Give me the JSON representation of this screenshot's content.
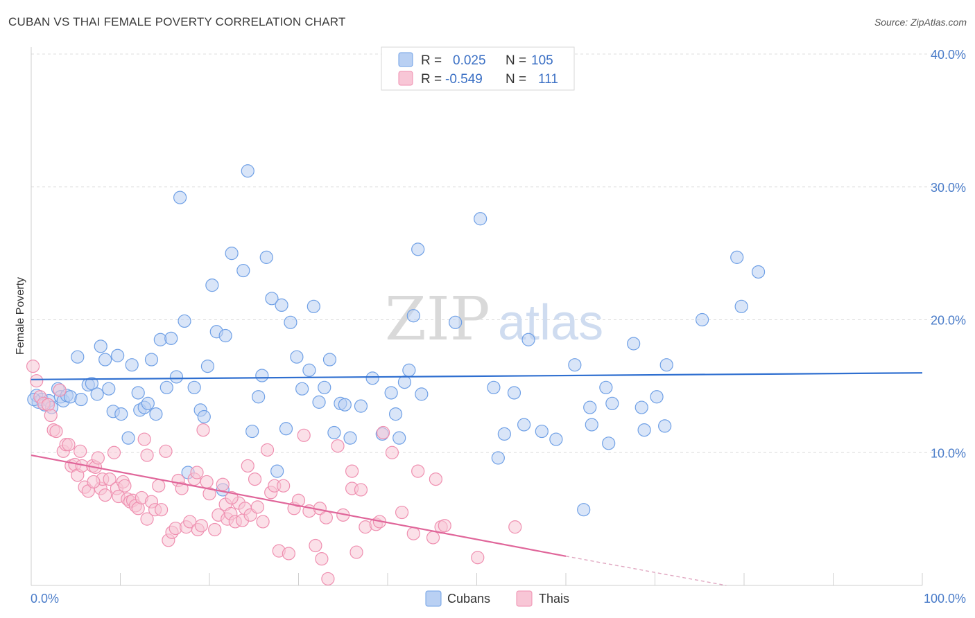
{
  "title": "CUBAN VS THAI FEMALE POVERTY CORRELATION CHART",
  "source": "Source: ZipAtlas.com",
  "watermark": {
    "zip": "ZIP",
    "atlas": "atlas"
  },
  "legend": {
    "rows": [
      {
        "r_label": "R =",
        "r_value": "0.025",
        "n_label": "N =",
        "n_value": "105",
        "color": "#6fa0e6",
        "fill": "#b9d0f3"
      },
      {
        "r_label": "R =",
        "r_value": "-0.549",
        "n_label": "N =",
        "n_value": "111",
        "color": "#ef8fb0",
        "fill": "#f8c6d6"
      }
    ]
  },
  "chart_data": {
    "type": "scatter",
    "xlabel": "",
    "ylabel": "Female Poverty",
    "xlim": [
      0,
      100
    ],
    "ylim": [
      0,
      40
    ],
    "x_tick_labels": [
      "0.0%",
      "100.0%"
    ],
    "y_ticks": [
      10,
      20,
      30,
      40
    ],
    "y_tick_labels": [
      "10.0%",
      "20.0%",
      "30.0%",
      "40.0%"
    ],
    "grid": true,
    "legend_position": "bottom-center",
    "series": [
      {
        "name": "Cubans",
        "color": "#6fa0e6",
        "fill": "#b9d0f3",
        "trend": {
          "x": [
            0,
            100
          ],
          "y": [
            15.5,
            16.0
          ]
        },
        "points": [
          [
            0.6,
            14.3
          ],
          [
            0.8,
            13.8
          ],
          [
            1.2,
            14.0
          ],
          [
            1.5,
            13.6
          ],
          [
            2.0,
            13.9
          ],
          [
            2.3,
            13.4
          ],
          [
            3.0,
            14.8
          ],
          [
            3.3,
            14.2
          ],
          [
            3.6,
            13.9
          ],
          [
            4.0,
            14.3
          ],
          [
            4.4,
            14.2
          ],
          [
            5.2,
            17.2
          ],
          [
            5.6,
            14.0
          ],
          [
            6.4,
            15.1
          ],
          [
            6.8,
            15.2
          ],
          [
            7.4,
            14.4
          ],
          [
            7.8,
            18.0
          ],
          [
            8.3,
            17.0
          ],
          [
            8.7,
            14.8
          ],
          [
            9.2,
            13.1
          ],
          [
            9.7,
            17.3
          ],
          [
            10.1,
            12.9
          ],
          [
            10.9,
            11.1
          ],
          [
            11.3,
            16.6
          ],
          [
            12.0,
            14.5
          ],
          [
            12.2,
            13.2
          ],
          [
            12.7,
            13.4
          ],
          [
            13.1,
            13.7
          ],
          [
            13.5,
            17.0
          ],
          [
            14.0,
            12.9
          ],
          [
            14.5,
            18.5
          ],
          [
            15.2,
            14.9
          ],
          [
            15.7,
            18.6
          ],
          [
            16.3,
            15.7
          ],
          [
            16.7,
            29.2
          ],
          [
            17.2,
            19.9
          ],
          [
            17.6,
            8.5
          ],
          [
            18.3,
            14.9
          ],
          [
            19.0,
            13.2
          ],
          [
            19.4,
            12.7
          ],
          [
            19.8,
            16.5
          ],
          [
            20.3,
            22.6
          ],
          [
            20.8,
            19.1
          ],
          [
            21.5,
            7.2
          ],
          [
            21.8,
            18.8
          ],
          [
            22.5,
            25.0
          ],
          [
            23.8,
            23.7
          ],
          [
            24.3,
            31.2
          ],
          [
            24.8,
            11.6
          ],
          [
            25.5,
            14.2
          ],
          [
            25.9,
            15.8
          ],
          [
            26.4,
            24.7
          ],
          [
            27.0,
            21.6
          ],
          [
            27.6,
            8.6
          ],
          [
            28.1,
            21.1
          ],
          [
            28.6,
            11.8
          ],
          [
            29.1,
            19.8
          ],
          [
            29.8,
            17.2
          ],
          [
            30.4,
            14.8
          ],
          [
            31.2,
            16.2
          ],
          [
            31.7,
            21.0
          ],
          [
            32.3,
            13.8
          ],
          [
            32.9,
            14.9
          ],
          [
            33.5,
            17.0
          ],
          [
            34.0,
            11.5
          ],
          [
            34.7,
            13.7
          ],
          [
            35.2,
            13.6
          ],
          [
            35.8,
            11.1
          ],
          [
            37.0,
            13.5
          ],
          [
            38.3,
            15.6
          ],
          [
            39.4,
            11.4
          ],
          [
            40.4,
            14.5
          ],
          [
            40.9,
            12.9
          ],
          [
            41.3,
            11.1
          ],
          [
            41.9,
            15.3
          ],
          [
            42.4,
            16.2
          ],
          [
            42.9,
            20.3
          ],
          [
            43.4,
            25.3
          ],
          [
            43.8,
            14.4
          ],
          [
            47.6,
            19.8
          ],
          [
            50.4,
            27.6
          ],
          [
            51.9,
            14.9
          ],
          [
            52.4,
            9.6
          ],
          [
            53.1,
            11.4
          ],
          [
            54.2,
            14.5
          ],
          [
            55.3,
            12.1
          ],
          [
            55.8,
            18.5
          ],
          [
            57.3,
            11.6
          ],
          [
            58.9,
            11.0
          ],
          [
            61.0,
            16.6
          ],
          [
            62.0,
            5.7
          ],
          [
            62.7,
            13.4
          ],
          [
            62.9,
            12.1
          ],
          [
            64.5,
            14.9
          ],
          [
            64.8,
            10.7
          ],
          [
            65.2,
            13.7
          ],
          [
            67.6,
            18.2
          ],
          [
            68.5,
            13.4
          ],
          [
            68.8,
            11.7
          ],
          [
            70.2,
            14.2
          ],
          [
            71.1,
            12.0
          ],
          [
            71.3,
            16.6
          ],
          [
            75.3,
            20.0
          ],
          [
            79.2,
            24.7
          ],
          [
            79.7,
            21.0
          ],
          [
            81.6,
            23.6
          ],
          [
            0.3,
            14.0
          ]
        ]
      },
      {
        "name": "Thais",
        "color": "#ef8fb0",
        "fill": "#f8c6d6",
        "trend": {
          "x": [
            0,
            60
          ],
          "y": [
            9.8,
            2.2
          ]
        },
        "trend_dashed": {
          "x": [
            60,
            78
          ],
          "y": [
            2.2,
            0.0
          ]
        },
        "points": [
          [
            0.2,
            16.5
          ],
          [
            0.6,
            15.4
          ],
          [
            1.0,
            14.2
          ],
          [
            1.4,
            13.7
          ],
          [
            1.9,
            13.6
          ],
          [
            2.2,
            12.8
          ],
          [
            2.5,
            11.7
          ],
          [
            2.8,
            11.6
          ],
          [
            3.2,
            14.7
          ],
          [
            3.6,
            10.1
          ],
          [
            3.9,
            10.6
          ],
          [
            4.2,
            10.6
          ],
          [
            4.5,
            9.0
          ],
          [
            4.9,
            9.1
          ],
          [
            5.2,
            8.3
          ],
          [
            5.5,
            10.1
          ],
          [
            5.7,
            9.0
          ],
          [
            6.0,
            7.4
          ],
          [
            6.4,
            7.1
          ],
          [
            6.9,
            9.0
          ],
          [
            7.2,
            8.9
          ],
          [
            7.5,
            9.6
          ],
          [
            7.8,
            7.3
          ],
          [
            8.0,
            8.0
          ],
          [
            8.3,
            6.8
          ],
          [
            8.8,
            8.0
          ],
          [
            9.3,
            10.0
          ],
          [
            9.6,
            7.3
          ],
          [
            9.8,
            6.7
          ],
          [
            10.3,
            7.8
          ],
          [
            10.5,
            7.5
          ],
          [
            10.8,
            6.5
          ],
          [
            11.1,
            6.3
          ],
          [
            11.4,
            6.4
          ],
          [
            11.7,
            6.0
          ],
          [
            12.0,
            5.8
          ],
          [
            12.4,
            6.6
          ],
          [
            12.7,
            11.0
          ],
          [
            13.0,
            5.0
          ],
          [
            13.5,
            6.3
          ],
          [
            13.9,
            5.7
          ],
          [
            14.3,
            7.5
          ],
          [
            14.6,
            5.7
          ],
          [
            15.1,
            10.1
          ],
          [
            15.4,
            3.4
          ],
          [
            15.8,
            4.0
          ],
          [
            16.2,
            4.3
          ],
          [
            16.5,
            7.9
          ],
          [
            16.9,
            7.3
          ],
          [
            17.4,
            4.4
          ],
          [
            17.8,
            4.8
          ],
          [
            18.3,
            8.0
          ],
          [
            18.7,
            4.2
          ],
          [
            19.1,
            4.5
          ],
          [
            19.3,
            11.7
          ],
          [
            19.7,
            7.8
          ],
          [
            20.0,
            6.9
          ],
          [
            20.6,
            4.2
          ],
          [
            21.0,
            5.3
          ],
          [
            21.5,
            7.6
          ],
          [
            21.8,
            6.1
          ],
          [
            22.0,
            5.0
          ],
          [
            22.4,
            5.4
          ],
          [
            22.9,
            4.8
          ],
          [
            23.3,
            6.2
          ],
          [
            23.7,
            4.9
          ],
          [
            24.0,
            5.8
          ],
          [
            24.3,
            9.0
          ],
          [
            24.6,
            5.3
          ],
          [
            25.1,
            8.0
          ],
          [
            25.4,
            5.9
          ],
          [
            26.0,
            4.8
          ],
          [
            26.5,
            10.2
          ],
          [
            26.9,
            7.0
          ],
          [
            27.3,
            7.5
          ],
          [
            27.8,
            2.6
          ],
          [
            28.3,
            7.5
          ],
          [
            28.9,
            2.4
          ],
          [
            29.5,
            5.8
          ],
          [
            30.0,
            6.4
          ],
          [
            30.6,
            11.3
          ],
          [
            31.2,
            5.6
          ],
          [
            31.9,
            3.0
          ],
          [
            32.4,
            5.8
          ],
          [
            32.6,
            2.0
          ],
          [
            33.1,
            5.1
          ],
          [
            33.3,
            0.5
          ],
          [
            34.4,
            10.5
          ],
          [
            35.0,
            5.3
          ],
          [
            36.0,
            7.3
          ],
          [
            36.5,
            2.5
          ],
          [
            37.0,
            7.2
          ],
          [
            37.5,
            4.4
          ],
          [
            38.7,
            4.6
          ],
          [
            39.5,
            11.5
          ],
          [
            40.5,
            10.0
          ],
          [
            41.6,
            5.5
          ],
          [
            42.9,
            3.9
          ],
          [
            43.4,
            8.6
          ],
          [
            45.1,
            3.6
          ],
          [
            45.4,
            8.0
          ],
          [
            46.0,
            4.4
          ],
          [
            46.4,
            4.5
          ],
          [
            50.1,
            2.1
          ],
          [
            54.3,
            4.4
          ],
          [
            36.0,
            8.6
          ],
          [
            39.1,
            4.8
          ],
          [
            22.5,
            6.6
          ],
          [
            18.6,
            8.5
          ],
          [
            7.0,
            7.8
          ],
          [
            13.0,
            9.8
          ]
        ]
      }
    ]
  }
}
